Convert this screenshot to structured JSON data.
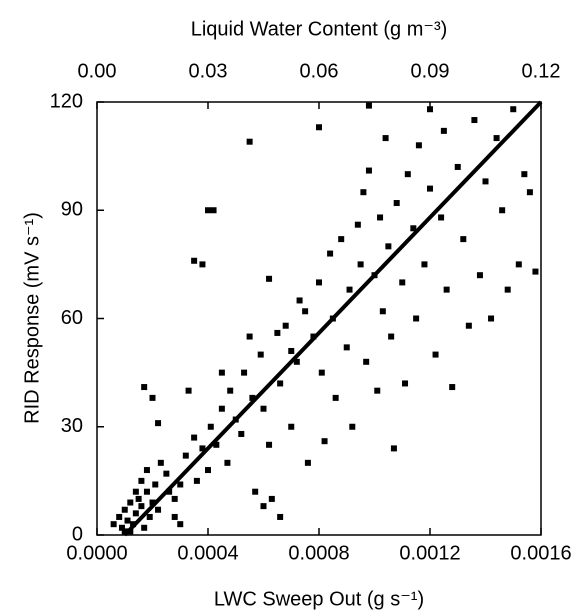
{
  "chart_data": {
    "type": "scatter",
    "title": "Liquid Water Content (g m⁻³)",
    "xlabel": "LWC Sweep Out (g s⁻¹)",
    "ylabel": "RID Response (mV s⁻¹)",
    "xlim": [
      0,
      0.0016
    ],
    "xticks": [
      {
        "value": 0,
        "label": "0.0000"
      },
      0.0004,
      0.0008,
      0.0012,
      0.0016
    ],
    "x2lim": [
      0,
      0.12
    ],
    "x2ticks": [
      {
        "value": 0,
        "label": "0.00"
      },
      0.03,
      0.06,
      0.09,
      0.12
    ],
    "ylim": [
      0,
      120
    ],
    "yticks": [
      0,
      30,
      60,
      90,
      120
    ],
    "color": "#000000",
    "points": {
      "x": [
        6e-05,
        8e-05,
        9e-05,
        0.0001,
        0.00011,
        0.00012,
        0.00013,
        0.00014,
        0.00015,
        0.00016,
        0.00017,
        0.00018,
        0.00019,
        0.0002,
        0.00012,
        0.0001,
        0.00014,
        0.00016,
        0.00018,
        0.00021,
        0.00022,
        0.00023,
        0.00025,
        0.00026,
        0.00028,
        0.0003,
        0.00032,
        0.00017,
        0.0002,
        0.00022,
        0.00033,
        0.00035,
        0.00036,
        0.00038,
        0.0004,
        0.00041,
        0.00043,
        0.00045,
        0.00047,
        0.00048,
        0.0005,
        0.00052,
        0.00053,
        0.00055,
        0.00056,
        0.00057,
        0.00059,
        0.0006,
        0.00062,
        0.00063,
        0.00065,
        0.00066,
        0.00068,
        0.0007,
        0.00072,
        0.00073,
        0.00075,
        0.00076,
        0.00078,
        0.0008,
        0.00081,
        0.00082,
        0.00084,
        0.00085,
        0.00086,
        0.00088,
        0.0009,
        0.00091,
        0.00092,
        0.00094,
        0.00095,
        0.00096,
        0.00097,
        0.00098,
        0.001,
        0.00101,
        0.00102,
        0.00103,
        0.00104,
        0.00105,
        0.00106,
        0.00107,
        0.00108,
        0.0011,
        0.00111,
        0.00112,
        0.00114,
        0.00115,
        0.00116,
        0.00118,
        0.0012,
        0.00122,
        0.00124,
        0.00125,
        0.00126,
        0.00128,
        0.0013,
        0.00132,
        0.00134,
        0.00136,
        0.00138,
        0.0014,
        0.00142,
        0.00144,
        0.00146,
        0.00148,
        0.0015,
        0.00152,
        0.00154,
        0.00156,
        0.00158,
        0.0004,
        0.00042,
        0.00035,
        0.00038,
        0.00055,
        0.0008,
        0.00098,
        0.0012,
        0.0007,
        0.00062,
        0.00045,
        0.00028,
        0.0003,
        0.00066,
        0.0006
      ],
      "values": [
        3,
        5,
        2,
        7,
        4,
        9,
        3,
        6,
        10,
        8,
        2,
        12,
        5,
        9,
        1,
        1,
        12,
        15,
        18,
        14,
        7,
        20,
        17,
        12,
        5,
        3,
        22,
        41,
        38,
        31,
        40,
        27,
        15,
        24,
        18,
        30,
        25,
        35,
        20,
        40,
        32,
        28,
        45,
        55,
        38,
        12,
        50,
        35,
        25,
        10,
        56,
        42,
        58,
        30,
        48,
        65,
        62,
        20,
        55,
        70,
        45,
        26,
        78,
        60,
        38,
        82,
        52,
        68,
        30,
        86,
        75,
        95,
        48,
        101,
        72,
        40,
        88,
        62,
        110,
        80,
        55,
        24,
        92,
        70,
        42,
        100,
        85,
        60,
        108,
        75,
        96,
        50,
        88,
        112,
        68,
        41,
        102,
        82,
        58,
        115,
        72,
        98,
        60,
        110,
        90,
        68,
        118,
        75,
        100,
        95,
        73,
        90,
        90,
        76,
        75,
        109,
        113,
        119,
        118,
        51,
        71,
        45,
        10,
        14,
        5,
        8
      ]
    },
    "fit": {
      "x": [
        0.0001,
        0.0016
      ],
      "values": [
        0,
        120
      ]
    }
  }
}
